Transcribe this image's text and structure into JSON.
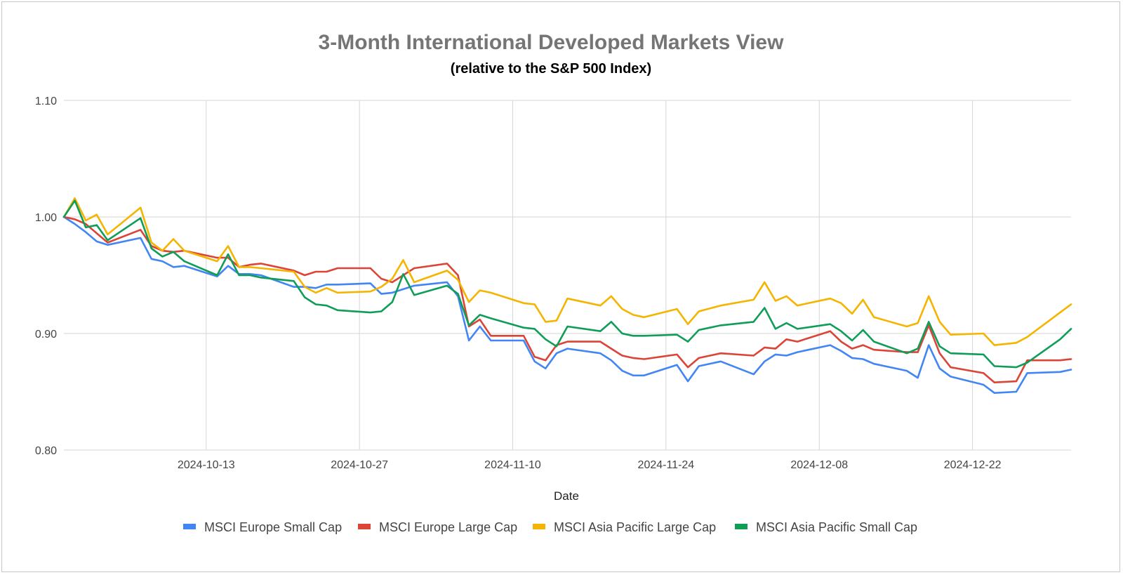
{
  "chart_data": {
    "type": "line",
    "title": "3-Month International Developed Markets View",
    "subtitle": "(relative to the S&P 500 Index)",
    "xlabel": "Date",
    "ylabel": "",
    "ylim": [
      0.8,
      1.1
    ],
    "yticks": [
      "0.80",
      "0.90",
      "1.00",
      "1.10"
    ],
    "xlim": [
      "2024-09-30",
      "2024-12-31"
    ],
    "xticks": [
      "2024-10-13",
      "2024-10-27",
      "2024-11-10",
      "2024-11-24",
      "2024-12-08",
      "2024-12-22"
    ],
    "grid": true,
    "legend_position": "bottom",
    "x": [
      "2024-09-30",
      "2024-10-01",
      "2024-10-02",
      "2024-10-03",
      "2024-10-04",
      "2024-10-07",
      "2024-10-08",
      "2024-10-09",
      "2024-10-10",
      "2024-10-11",
      "2024-10-14",
      "2024-10-15",
      "2024-10-16",
      "2024-10-17",
      "2024-10-18",
      "2024-10-21",
      "2024-10-22",
      "2024-10-23",
      "2024-10-24",
      "2024-10-25",
      "2024-10-28",
      "2024-10-29",
      "2024-10-30",
      "2024-10-31",
      "2024-11-01",
      "2024-11-04",
      "2024-11-05",
      "2024-11-06",
      "2024-11-07",
      "2024-11-08",
      "2024-11-11",
      "2024-11-12",
      "2024-11-13",
      "2024-11-14",
      "2024-11-15",
      "2024-11-18",
      "2024-11-19",
      "2024-11-20",
      "2024-11-21",
      "2024-11-22",
      "2024-11-25",
      "2024-11-26",
      "2024-11-27",
      "2024-11-29",
      "2024-12-02",
      "2024-12-03",
      "2024-12-04",
      "2024-12-05",
      "2024-12-06",
      "2024-12-09",
      "2024-12-10",
      "2024-12-11",
      "2024-12-12",
      "2024-12-13",
      "2024-12-16",
      "2024-12-17",
      "2024-12-18",
      "2024-12-19",
      "2024-12-20",
      "2024-12-23",
      "2024-12-24",
      "2024-12-26",
      "2024-12-27",
      "2024-12-30",
      "2024-12-31"
    ],
    "series": [
      {
        "name": "MSCI Europe Small Cap",
        "color": "#4285f4",
        "values": [
          1.0,
          0.994,
          0.987,
          0.979,
          0.976,
          0.982,
          0.964,
          0.962,
          0.957,
          0.958,
          0.949,
          0.958,
          0.951,
          0.951,
          0.95,
          0.94,
          0.94,
          0.939,
          0.942,
          0.942,
          0.943,
          0.934,
          0.935,
          0.938,
          0.941,
          0.944,
          0.932,
          0.894,
          0.906,
          0.894,
          0.894,
          0.876,
          0.87,
          0.883,
          0.887,
          0.883,
          0.877,
          0.868,
          0.864,
          0.864,
          0.873,
          0.859,
          0.872,
          0.876,
          0.865,
          0.876,
          0.882,
          0.881,
          0.884,
          0.89,
          0.885,
          0.879,
          0.878,
          0.874,
          0.868,
          0.862,
          0.89,
          0.87,
          0.863,
          0.856,
          0.849,
          0.85,
          0.866,
          0.867,
          0.869
        ]
      },
      {
        "name": "MSCI Europe Large Cap",
        "color": "#db4437",
        "values": [
          1.0,
          0.998,
          0.994,
          0.986,
          0.978,
          0.989,
          0.975,
          0.971,
          0.97,
          0.971,
          0.965,
          0.965,
          0.957,
          0.959,
          0.96,
          0.954,
          0.95,
          0.953,
          0.953,
          0.956,
          0.956,
          0.947,
          0.944,
          0.95,
          0.956,
          0.96,
          0.95,
          0.906,
          0.912,
          0.898,
          0.898,
          0.88,
          0.877,
          0.89,
          0.893,
          0.893,
          0.887,
          0.881,
          0.879,
          0.878,
          0.882,
          0.871,
          0.879,
          0.883,
          0.881,
          0.888,
          0.887,
          0.895,
          0.893,
          0.902,
          0.893,
          0.887,
          0.89,
          0.886,
          0.884,
          0.884,
          0.907,
          0.883,
          0.871,
          0.866,
          0.858,
          0.859,
          0.877,
          0.877,
          0.878
        ]
      },
      {
        "name": "MSCI Asia Pacific Large Cap",
        "color": "#f4b400",
        "values": [
          1.0,
          1.016,
          0.997,
          1.002,
          0.985,
          1.008,
          0.978,
          0.971,
          0.981,
          0.971,
          0.962,
          0.975,
          0.957,
          0.957,
          0.956,
          0.953,
          0.94,
          0.935,
          0.939,
          0.935,
          0.936,
          0.94,
          0.947,
          0.963,
          0.944,
          0.954,
          0.946,
          0.927,
          0.937,
          0.935,
          0.926,
          0.925,
          0.91,
          0.911,
          0.93,
          0.924,
          0.932,
          0.921,
          0.916,
          0.914,
          0.921,
          0.908,
          0.919,
          0.924,
          0.929,
          0.944,
          0.928,
          0.932,
          0.924,
          0.93,
          0.926,
          0.917,
          0.929,
          0.914,
          0.906,
          0.909,
          0.932,
          0.91,
          0.899,
          0.9,
          0.89,
          0.892,
          0.897,
          0.918,
          0.925
        ]
      },
      {
        "name": "MSCI Asia Pacific Small Cap",
        "color": "#0f9d58",
        "values": [
          1.0,
          1.014,
          0.991,
          0.993,
          0.98,
          0.999,
          0.973,
          0.966,
          0.97,
          0.962,
          0.95,
          0.968,
          0.95,
          0.95,
          0.948,
          0.945,
          0.931,
          0.925,
          0.924,
          0.92,
          0.918,
          0.919,
          0.927,
          0.951,
          0.933,
          0.941,
          0.934,
          0.907,
          0.916,
          0.913,
          0.905,
          0.904,
          0.895,
          0.889,
          0.906,
          0.902,
          0.91,
          0.9,
          0.898,
          0.898,
          0.899,
          0.893,
          0.903,
          0.907,
          0.91,
          0.922,
          0.904,
          0.909,
          0.904,
          0.908,
          0.902,
          0.894,
          0.903,
          0.893,
          0.883,
          0.887,
          0.91,
          0.889,
          0.883,
          0.882,
          0.872,
          0.871,
          0.875,
          0.895,
          0.904
        ]
      }
    ]
  }
}
